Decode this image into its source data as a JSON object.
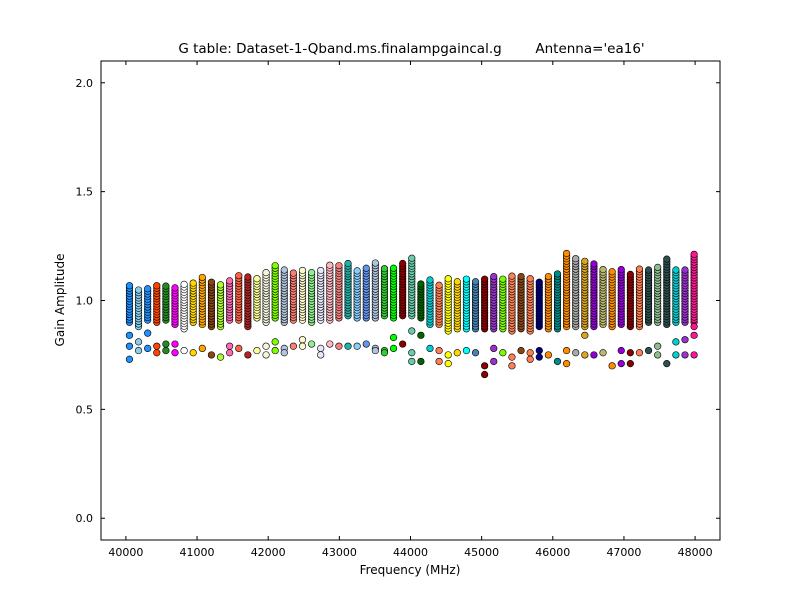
{
  "chart_data": {
    "type": "scatter",
    "title": "G table: Dataset-1-Qband.ms.finalampgaincal.g",
    "antenna_label": "Antenna='ea16'",
    "xlabel": "Frequency (MHz)",
    "ylabel": "Gain Amplitude",
    "xlim": [
      39650,
      48350
    ],
    "ylim": [
      -0.1,
      2.1
    ],
    "xticks": [
      40000,
      41000,
      42000,
      43000,
      44000,
      45000,
      46000,
      47000,
      48000
    ],
    "yticks": [
      0.0,
      0.5,
      1.0,
      1.5,
      2.0
    ],
    "ytick_labels": [
      "0.0",
      "0.5",
      "1.0",
      "1.5",
      "2.0"
    ],
    "grid": false,
    "legend": "none",
    "marker": "circle",
    "marker_edge_color": "#000000",
    "channel_spacing_mhz": 128,
    "series": [
      {
        "x": 40050,
        "ymin": 0.9,
        "ymax": 1.07,
        "outliers": [
          0.84,
          0.79,
          0.73
        ],
        "color": "#1e90ff"
      },
      {
        "x": 40178,
        "ymin": 0.88,
        "ymax": 1.05,
        "outliers": [
          0.81,
          0.77
        ],
        "color": "#87ceeb"
      },
      {
        "x": 40306,
        "ymin": 0.91,
        "ymax": 1.06,
        "outliers": [
          0.85,
          0.78
        ],
        "color": "#1e90ff"
      },
      {
        "x": 40434,
        "ymin": 0.9,
        "ymax": 1.07,
        "outliers": [
          0.79,
          0.76
        ],
        "color": "#ff4500"
      },
      {
        "x": 40562,
        "ymin": 0.91,
        "ymax": 1.07,
        "outliers": [
          0.8,
          0.77
        ],
        "color": "#228b22"
      },
      {
        "x": 40690,
        "ymin": 0.89,
        "ymax": 1.06,
        "outliers": [
          0.8,
          0.76
        ],
        "color": "#ff00ff"
      },
      {
        "x": 40818,
        "ymin": 0.87,
        "ymax": 1.08,
        "outliers": [
          0.77
        ],
        "color": "#ffffff"
      },
      {
        "x": 40946,
        "ymin": 0.9,
        "ymax": 1.09,
        "outliers": [
          0.76
        ],
        "color": "#ffd700"
      },
      {
        "x": 41074,
        "ymin": 0.89,
        "ymax": 1.11,
        "outliers": [
          0.78
        ],
        "color": "#ffa500"
      },
      {
        "x": 41202,
        "ymin": 0.88,
        "ymax": 1.09,
        "outliers": [
          0.75
        ],
        "color": "#8b4513"
      },
      {
        "x": 41330,
        "ymin": 0.88,
        "ymax": 1.08,
        "outliers": [
          0.74
        ],
        "color": "#adff2f"
      },
      {
        "x": 41458,
        "ymin": 0.91,
        "ymax": 1.09,
        "outliers": [
          0.79,
          0.76
        ],
        "color": "#ff69b4"
      },
      {
        "x": 41586,
        "ymin": 0.91,
        "ymax": 1.12,
        "outliers": [
          0.78
        ],
        "color": "#ff6347"
      },
      {
        "x": 41714,
        "ymin": 0.88,
        "ymax": 1.11,
        "outliers": [
          0.75
        ],
        "color": "#b22222"
      },
      {
        "x": 41842,
        "ymin": 0.92,
        "ymax": 1.1,
        "outliers": [
          0.77
        ],
        "color": "#ffff99"
      },
      {
        "x": 41970,
        "ymin": 0.9,
        "ymax": 1.13,
        "outliers": [
          0.79,
          0.75
        ],
        "color": "#f5f5dc"
      },
      {
        "x": 42098,
        "ymin": 0.92,
        "ymax": 1.16,
        "outliers": [
          0.81,
          0.77
        ],
        "color": "#7fff00"
      },
      {
        "x": 42226,
        "ymin": 0.9,
        "ymax": 1.15,
        "outliers": [
          0.78,
          0.76
        ],
        "color": "#b0c4de"
      },
      {
        "x": 42354,
        "ymin": 0.91,
        "ymax": 1.13,
        "outliers": [
          0.79
        ],
        "color": "#fa8072"
      },
      {
        "x": 42482,
        "ymin": 0.91,
        "ymax": 1.14,
        "outliers": [
          0.82,
          0.79
        ],
        "color": "#fffacd"
      },
      {
        "x": 42610,
        "ymin": 0.9,
        "ymax": 1.13,
        "outliers": [
          0.8
        ],
        "color": "#90ee90"
      },
      {
        "x": 42738,
        "ymin": 0.91,
        "ymax": 1.14,
        "outliers": [
          0.78,
          0.75
        ],
        "color": "#e6e6fa"
      },
      {
        "x": 42866,
        "ymin": 0.91,
        "ymax": 1.17,
        "outliers": [
          0.8
        ],
        "color": "#ffb6c1"
      },
      {
        "x": 42994,
        "ymin": 0.92,
        "ymax": 1.16,
        "outliers": [
          0.79
        ],
        "color": "#f08080"
      },
      {
        "x": 43122,
        "ymin": 0.93,
        "ymax": 1.17,
        "outliers": [
          0.79
        ],
        "color": "#20b2aa"
      },
      {
        "x": 43250,
        "ymin": 0.92,
        "ymax": 1.14,
        "outliers": [
          0.79
        ],
        "color": "#87cefa"
      },
      {
        "x": 43378,
        "ymin": 0.92,
        "ymax": 1.15,
        "outliers": [
          0.8
        ],
        "color": "#6495ed"
      },
      {
        "x": 43506,
        "ymin": 0.92,
        "ymax": 1.18,
        "outliers": [
          0.78,
          0.77
        ],
        "color": "#b0c4de"
      },
      {
        "x": 43634,
        "ymin": 0.93,
        "ymax": 1.15,
        "outliers": [
          0.77,
          0.76
        ],
        "color": "#32cd32"
      },
      {
        "x": 43762,
        "ymin": 0.92,
        "ymax": 1.15,
        "outliers": [
          0.83,
          0.78
        ],
        "color": "#00ff00"
      },
      {
        "x": 43890,
        "ymin": 0.93,
        "ymax": 1.18,
        "outliers": [
          0.8
        ],
        "color": "#8b0000"
      },
      {
        "x": 44018,
        "ymin": 0.93,
        "ymax": 1.2,
        "outliers": [
          0.86,
          0.76,
          0.72
        ],
        "color": "#66cdaa"
      },
      {
        "x": 44146,
        "ymin": 0.92,
        "ymax": 1.08,
        "outliers": [
          0.84,
          0.72
        ],
        "color": "#006400"
      },
      {
        "x": 44274,
        "ymin": 0.89,
        "ymax": 1.1,
        "outliers": [
          0.78
        ],
        "color": "#00ced1"
      },
      {
        "x": 44402,
        "ymin": 0.89,
        "ymax": 1.08,
        "outliers": [
          0.77,
          0.72
        ],
        "color": "#ff7f50"
      },
      {
        "x": 44530,
        "ymin": 0.86,
        "ymax": 1.11,
        "outliers": [
          0.75,
          0.71
        ],
        "color": "#ffff00"
      },
      {
        "x": 44658,
        "ymin": 0.87,
        "ymax": 1.09,
        "outliers": [
          0.76
        ],
        "color": "#ffd700"
      },
      {
        "x": 44786,
        "ymin": 0.87,
        "ymax": 1.1,
        "outliers": [
          0.77
        ],
        "color": "#00ffff"
      },
      {
        "x": 44914,
        "ymin": 0.87,
        "ymax": 1.09,
        "outliers": [
          0.76
        ],
        "color": "#4682b4"
      },
      {
        "x": 45042,
        "ymin": 0.87,
        "ymax": 1.1,
        "outliers": [
          0.7,
          0.66
        ],
        "color": "#8b0000"
      },
      {
        "x": 45170,
        "ymin": 0.87,
        "ymax": 1.11,
        "outliers": [
          0.78,
          0.72
        ],
        "color": "#9932cc"
      },
      {
        "x": 45298,
        "ymin": 0.87,
        "ymax": 1.1,
        "outliers": [
          0.76
        ],
        "color": "#7cfc00"
      },
      {
        "x": 45426,
        "ymin": 0.86,
        "ymax": 1.12,
        "outliers": [
          0.74,
          0.7
        ],
        "color": "#ff7f50"
      },
      {
        "x": 45554,
        "ymin": 0.87,
        "ymax": 1.11,
        "outliers": [
          0.77
        ],
        "color": "#8b4513"
      },
      {
        "x": 45682,
        "ymin": 0.86,
        "ymax": 1.1,
        "outliers": [
          0.76,
          0.73
        ],
        "color": "#ff7f50"
      },
      {
        "x": 45810,
        "ymin": 0.88,
        "ymax": 1.09,
        "outliers": [
          0.77,
          0.74
        ],
        "color": "#000080"
      },
      {
        "x": 45938,
        "ymin": 0.87,
        "ymax": 1.11,
        "outliers": [
          0.75
        ],
        "color": "#ff8c00"
      },
      {
        "x": 46066,
        "ymin": 0.87,
        "ymax": 1.13,
        "outliers": [
          0.72
        ],
        "color": "#008b8b"
      },
      {
        "x": 46194,
        "ymin": 0.88,
        "ymax": 1.22,
        "outliers": [
          0.77,
          0.71
        ],
        "color": "#ff8c00"
      },
      {
        "x": 46322,
        "ymin": 0.88,
        "ymax": 1.2,
        "outliers": [
          0.76
        ],
        "color": "#a9a9a9"
      },
      {
        "x": 46450,
        "ymin": 0.88,
        "ymax": 1.18,
        "outliers": [
          0.84,
          0.75
        ],
        "color": "#daa520"
      },
      {
        "x": 46578,
        "ymin": 0.88,
        "ymax": 1.17,
        "outliers": [
          0.75
        ],
        "color": "#9400d3"
      },
      {
        "x": 46706,
        "ymin": 0.89,
        "ymax": 1.15,
        "outliers": [
          0.76
        ],
        "color": "#bdb76b"
      },
      {
        "x": 46834,
        "ymin": 0.88,
        "ymax": 1.14,
        "outliers": [
          0.7
        ],
        "color": "#ff8c00"
      },
      {
        "x": 46962,
        "ymin": 0.89,
        "ymax": 1.15,
        "outliers": [
          0.77,
          0.71
        ],
        "color": "#9400d3"
      },
      {
        "x": 47090,
        "ymin": 0.88,
        "ymax": 1.13,
        "outliers": [
          0.76,
          0.71
        ],
        "color": "#8b0000"
      },
      {
        "x": 47218,
        "ymin": 0.88,
        "ymax": 1.15,
        "outliers": [
          0.76
        ],
        "color": "#ff7f50"
      },
      {
        "x": 47346,
        "ymin": 0.9,
        "ymax": 1.14,
        "outliers": [
          0.77
        ],
        "color": "#2f4f4f"
      },
      {
        "x": 47474,
        "ymin": 0.9,
        "ymax": 1.16,
        "outliers": [
          0.79,
          0.75
        ],
        "color": "#8fbc8f"
      },
      {
        "x": 47602,
        "ymin": 0.89,
        "ymax": 1.2,
        "outliers": [
          0.71
        ],
        "color": "#2f4f4f"
      },
      {
        "x": 47730,
        "ymin": 0.9,
        "ymax": 1.15,
        "outliers": [
          0.81,
          0.75
        ],
        "color": "#00ced1"
      },
      {
        "x": 47858,
        "ymin": 0.9,
        "ymax": 1.14,
        "outliers": [
          0.82,
          0.75
        ],
        "color": "#9932cc"
      },
      {
        "x": 47986,
        "ymin": 0.9,
        "ymax": 1.22,
        "outliers": [
          0.88,
          0.84,
          0.75
        ],
        "color": "#ff1493"
      }
    ]
  }
}
